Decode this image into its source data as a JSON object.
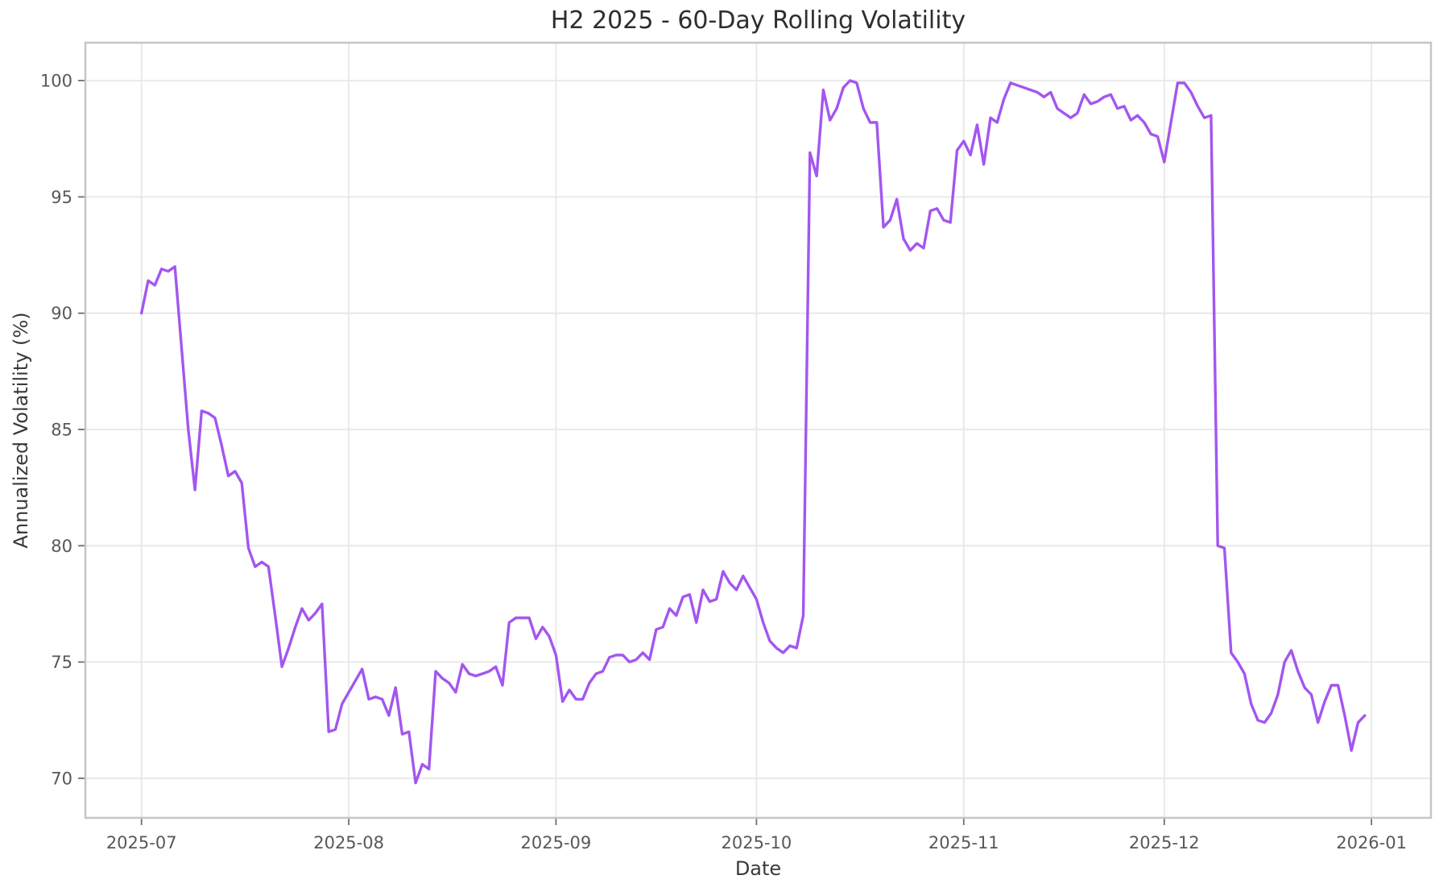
{
  "chart_data": {
    "type": "line",
    "title": "H2 2025 - 60-Day Rolling Volatility",
    "xlabel": "Date",
    "ylabel": "Annualized Volatility (%)",
    "line_color": "#a356f0",
    "grid": true,
    "grid_color": "#e7e7e7",
    "frame_color": "#c6c6c6",
    "tick_label_color": "#585858",
    "legend": null,
    "y_ticks": [
      70,
      75,
      80,
      85,
      90,
      95,
      100
    ],
    "x_ticks": [
      {
        "label": "2025-07",
        "date": "2025-07-01"
      },
      {
        "label": "2025-08",
        "date": "2025-08-01"
      },
      {
        "label": "2025-09",
        "date": "2025-09-01"
      },
      {
        "label": "2025-10",
        "date": "2025-10-01"
      },
      {
        "label": "2025-11",
        "date": "2025-11-01"
      },
      {
        "label": "2025-12",
        "date": "2025-12-01"
      },
      {
        "label": "2026-01",
        "date": "2026-01-01"
      }
    ],
    "ylim": [
      68.3,
      101.63
    ],
    "xlim_days": [
      -8.4,
      192.9
    ],
    "series": [
      {
        "name": "60-Day Rolling Volatility",
        "start_date": "2025-07-01",
        "frequency": "daily",
        "values": [
          90.0,
          91.4,
          91.2,
          91.9,
          91.8,
          92.0,
          88.5,
          85.0,
          82.4,
          85.8,
          85.7,
          85.5,
          84.3,
          83.0,
          83.2,
          82.7,
          79.9,
          79.1,
          79.3,
          79.1,
          77.0,
          74.8,
          75.6,
          76.5,
          77.3,
          76.8,
          77.1,
          77.5,
          72.0,
          72.1,
          73.2,
          73.7,
          74.2,
          74.7,
          73.4,
          73.5,
          73.4,
          72.7,
          73.9,
          71.9,
          72.0,
          69.8,
          70.6,
          70.4,
          74.6,
          74.3,
          74.1,
          73.7,
          74.9,
          74.5,
          74.4,
          74.5,
          74.6,
          74.8,
          74.0,
          76.7,
          76.9,
          76.9,
          76.9,
          76.0,
          76.5,
          76.1,
          75.3,
          73.3,
          73.8,
          73.4,
          73.4,
          74.1,
          74.5,
          74.6,
          75.2,
          75.3,
          75.3,
          75.0,
          75.1,
          75.4,
          75.1,
          76.4,
          76.5,
          77.3,
          77.0,
          77.8,
          77.9,
          76.7,
          78.1,
          77.6,
          77.7,
          78.9,
          78.4,
          78.1,
          78.7,
          78.2,
          77.7,
          76.7,
          75.9,
          75.6,
          75.4,
          75.7,
          75.6,
          77.0,
          96.9,
          95.9,
          99.6,
          98.3,
          98.8,
          99.7,
          100.0,
          99.9,
          98.8,
          98.2,
          98.2,
          93.7,
          94.0,
          94.9,
          93.2,
          92.7,
          93.0,
          92.8,
          94.4,
          94.5,
          94.0,
          93.9,
          97.0,
          97.4,
          96.8,
          98.1,
          96.4,
          98.4,
          98.2,
          99.2,
          99.9,
          99.8,
          99.7,
          99.6,
          99.5,
          99.3,
          99.5,
          98.8,
          98.6,
          98.4,
          98.6,
          99.4,
          99.0,
          99.1,
          99.3,
          99.4,
          98.8,
          98.9,
          98.3,
          98.5,
          98.2,
          97.7,
          97.6,
          96.5,
          98.2,
          99.9,
          99.9,
          99.5,
          98.9,
          98.4,
          98.5,
          80.0,
          79.9,
          75.4,
          75.0,
          74.5,
          73.2,
          72.5,
          72.4,
          72.8,
          73.6,
          75.0,
          75.5,
          74.6,
          73.9,
          73.6,
          72.4,
          73.3,
          74.0,
          74.0,
          72.7,
          71.2,
          72.4,
          72.7
        ]
      }
    ]
  }
}
